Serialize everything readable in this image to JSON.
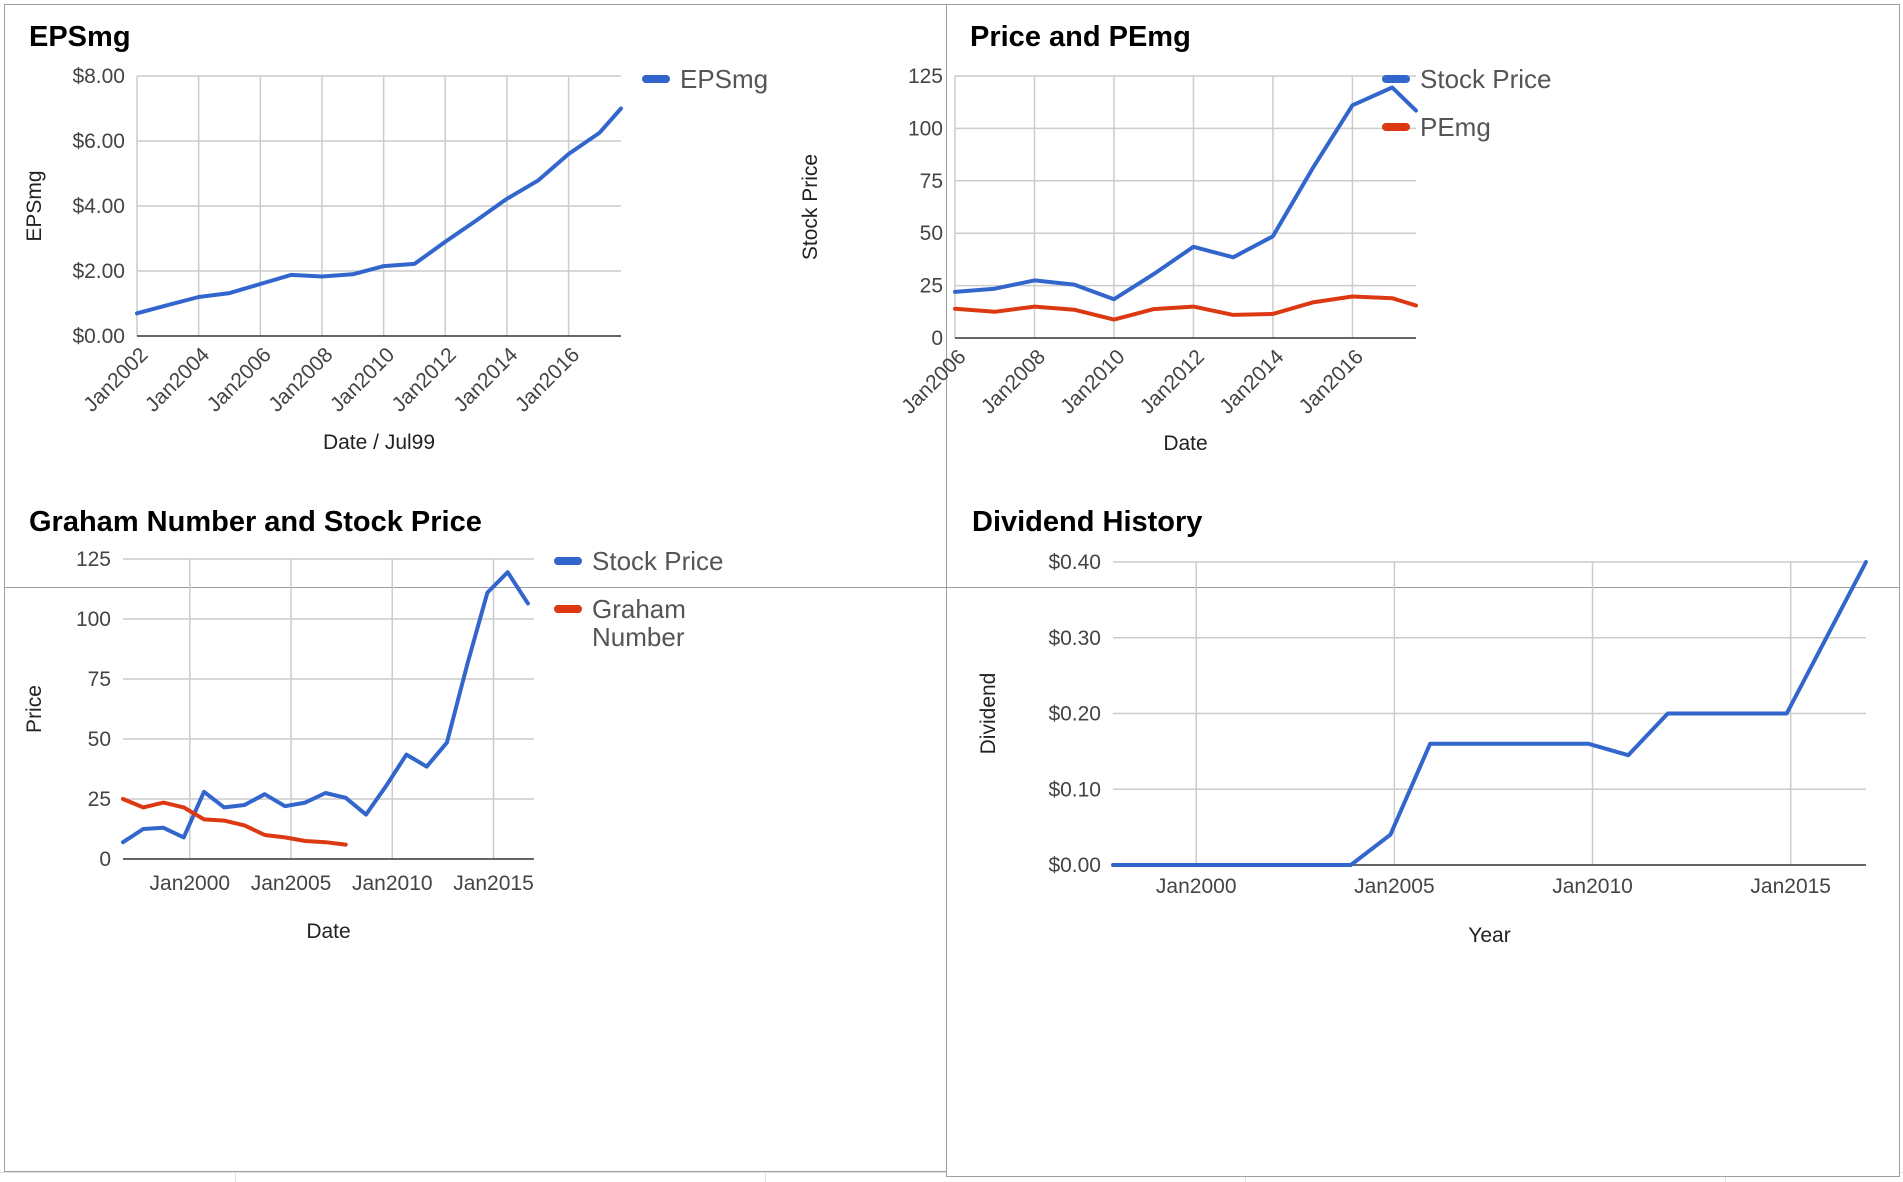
{
  "colors": {
    "blue": "#3366cc",
    "red": "#dc3912"
  },
  "chart_data": [
    {
      "type": "line",
      "title": "EPSmg",
      "xlabel": "Date / Jul99",
      "ylabel": "EPSmg",
      "x_ticks": [
        "Jan2002",
        "Jan2004",
        "Jan2006",
        "Jan2008",
        "Jan2010",
        "Jan2012",
        "Jan2014",
        "Jan2016"
      ],
      "y_ticks": [
        "$0.00",
        "$2.00",
        "$4.00",
        "$6.00",
        "$8.00"
      ],
      "xlim": [
        2002,
        2017.7
      ],
      "ylim": [
        0,
        8
      ],
      "grid": true,
      "legend": "right",
      "series": [
        {
          "name": "EPSmg",
          "color": "#3366cc",
          "x": [
            2002,
            2003,
            2004,
            2005,
            2006,
            2007,
            2008,
            2009,
            2010,
            2011,
            2012,
            2013,
            2014,
            2015,
            2016,
            2017,
            2017.7
          ],
          "y": [
            0.7,
            0.95,
            1.2,
            1.32,
            1.6,
            1.88,
            1.83,
            1.9,
            2.15,
            2.22,
            2.9,
            3.55,
            4.22,
            4.78,
            5.6,
            6.25,
            7.0
          ]
        }
      ]
    },
    {
      "type": "line",
      "title": "Price and PEmg",
      "xlabel": "Date",
      "ylabel": "Stock Price",
      "x_ticks": [
        "Jan2006",
        "Jan2008",
        "Jan2010",
        "Jan2012",
        "Jan2014",
        "Jan2016"
      ],
      "y_ticks": [
        "0",
        "25",
        "50",
        "75",
        "100",
        "125"
      ],
      "xlim": [
        2006,
        2017.6
      ],
      "ylim": [
        0,
        125
      ],
      "grid": true,
      "legend": "right",
      "series": [
        {
          "name": "Stock Price",
          "color": "#3366cc",
          "x": [
            2006,
            2007,
            2008,
            2009,
            2010,
            2011,
            2012,
            2013,
            2014,
            2015,
            2016,
            2017,
            2017.6
          ],
          "y": [
            22,
            23.5,
            27.5,
            25.5,
            18.5,
            30.5,
            43.5,
            38.5,
            48.5,
            81,
            111,
            119.5,
            108.5
          ]
        },
        {
          "name": "PEmg",
          "color": "#dc3912",
          "x": [
            2006,
            2007,
            2008,
            2009,
            2010,
            2011,
            2012,
            2013,
            2014,
            2015,
            2016,
            2017,
            2017.6
          ],
          "y": [
            14,
            12.5,
            15,
            13.5,
            8.8,
            13.8,
            15,
            11,
            11.5,
            17,
            19.8,
            19,
            15.5
          ]
        }
      ]
    },
    {
      "type": "line",
      "title": "Graham Number and Stock Price",
      "xlabel": "Date",
      "ylabel": "Price",
      "x_ticks": [
        "Jan2000",
        "Jan2005",
        "Jan2010",
        "Jan2015"
      ],
      "y_ticks": [
        "0",
        "25",
        "50",
        "75",
        "100",
        "125"
      ],
      "xlim": [
        1996.7,
        2017
      ],
      "ylim": [
        0,
        125
      ],
      "grid": true,
      "legend": "right",
      "series": [
        {
          "name": "Stock Price",
          "color": "#3366cc",
          "x": [
            1996.7,
            1997.7,
            1998.7,
            1999.7,
            2000.7,
            2001.7,
            2002.7,
            2003.7,
            2004.7,
            2005.7,
            2006.7,
            2007.7,
            2008.7,
            2009.7,
            2010.7,
            2011.7,
            2012.7,
            2013.7,
            2014.7,
            2015.7,
            2016.7
          ],
          "y": [
            7,
            12.5,
            13,
            9,
            28,
            21.5,
            22.5,
            27,
            22,
            23.5,
            27.5,
            25.5,
            18.5,
            30.5,
            43.5,
            38.5,
            48.5,
            81,
            111,
            119.5,
            106.5
          ]
        },
        {
          "name": "Graham Number",
          "color": "#dc3912",
          "x": [
            1996.7,
            1997.7,
            1998.7,
            1999.7,
            2000.7,
            2001.7,
            2002.7,
            2003.7,
            2004.7,
            2005.7,
            2006.7,
            2007.7
          ],
          "y": [
            25,
            21.5,
            23.5,
            21.5,
            16.5,
            16,
            14,
            10,
            9,
            7.5,
            7,
            6
          ]
        }
      ]
    },
    {
      "type": "line",
      "title": "Dividend History",
      "xlabel": "Year",
      "ylabel": "Dividend",
      "x_ticks": [
        "Jan2000",
        "Jan2005",
        "Jan2010",
        "Jan2015"
      ],
      "y_ticks": [
        "$0.00",
        "$0.10",
        "$0.20",
        "$0.30",
        "$0.40"
      ],
      "xlim": [
        1997.9,
        2016.9
      ],
      "ylim": [
        0,
        0.4
      ],
      "grid": true,
      "legend": "none",
      "series": [
        {
          "name": "Dividend",
          "color": "#3366cc",
          "x": [
            1997.9,
            2003.9,
            2004.9,
            2005.9,
            2006.9,
            2007.9,
            2008.9,
            2009.9,
            2010.9,
            2011.9,
            2012.9,
            2013.9,
            2014.9,
            2016.9
          ],
          "y": [
            0,
            0,
            0.04,
            0.16,
            0.16,
            0.16,
            0.16,
            0.16,
            0.145,
            0.2,
            0.2,
            0.2,
            0.2,
            0.4
          ]
        }
      ]
    }
  ]
}
